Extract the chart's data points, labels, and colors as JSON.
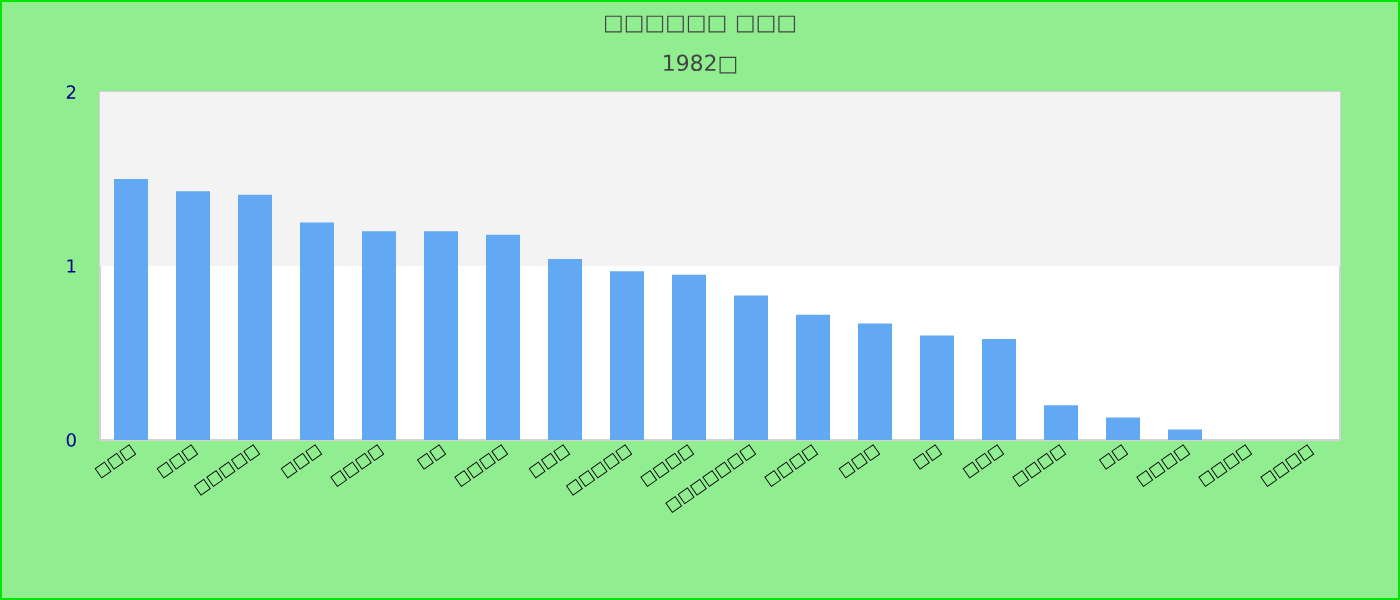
{
  "chart_data": {
    "type": "bar",
    "title": "□□□□□□ □□□",
    "subtitle": "1982□",
    "categories": [
      "□□□",
      "□□□",
      "□□□□□",
      "□□□",
      "□□□□",
      "□□",
      "□□□□",
      "□□□",
      "□□□□□",
      "□□□□",
      "□□□□□□□",
      "□□□□",
      "□□□",
      "□□",
      "□□□",
      "□□□□",
      "□□",
      "□□□□",
      "□□□□",
      "□□□□"
    ],
    "values": [
      1.5,
      1.43,
      1.41,
      1.25,
      1.2,
      1.2,
      1.18,
      1.04,
      0.97,
      0.95,
      0.83,
      0.72,
      0.67,
      0.6,
      0.58,
      0.2,
      0.13,
      0.06,
      0,
      0
    ],
    "color": "#63a8f2",
    "ylim": [
      0,
      2
    ],
    "yticks": [
      0,
      1,
      2
    ],
    "grid": false,
    "bands": [
      {
        "axis": "y",
        "from": 1,
        "to": 2,
        "color": "#f3f3f3"
      }
    ]
  }
}
